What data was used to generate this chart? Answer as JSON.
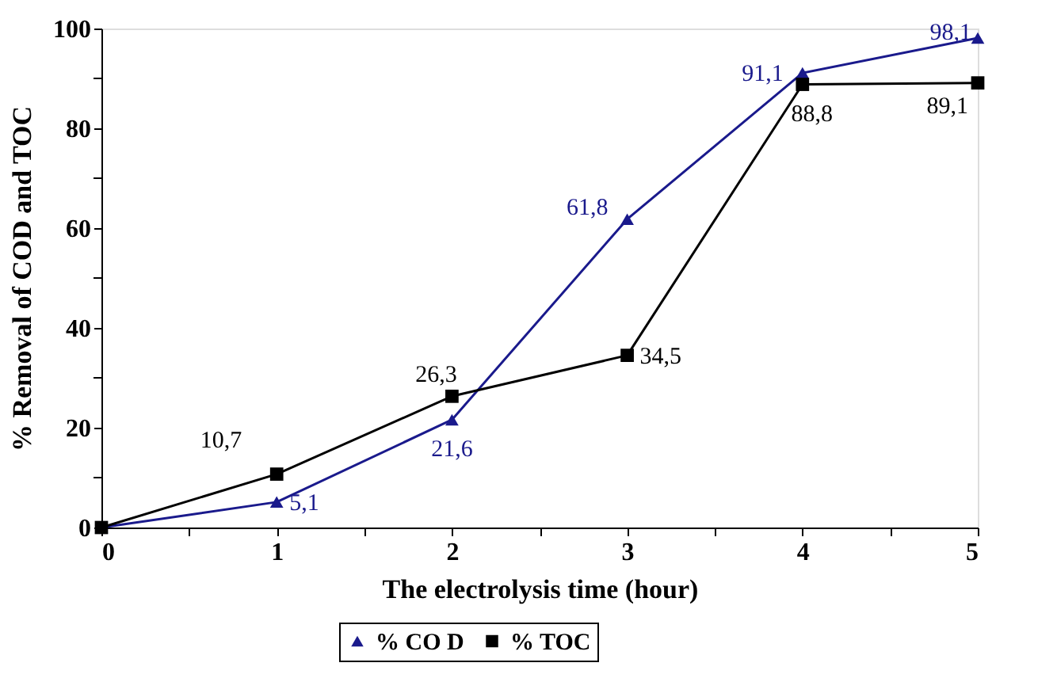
{
  "chart_data": {
    "type": "line",
    "xlabel": "The  electrolysis time (hour)",
    "ylabel": "% Removal of  COD and TOC",
    "x": [
      0,
      1,
      2,
      3,
      4,
      5
    ],
    "series": [
      {
        "name": "% CO D",
        "color": "#1a1a8c",
        "marker": "triangle",
        "values": [
          0,
          5.1,
          21.6,
          61.8,
          91.1,
          98.1
        ],
        "value_labels": [
          null,
          "5,1",
          "21,6",
          "61,8",
          "91,1",
          "98,1"
        ]
      },
      {
        "name": "% TOC",
        "color": "#000000",
        "marker": "square",
        "values": [
          0,
          10.7,
          26.3,
          34.5,
          88.8,
          89.1
        ],
        "value_labels": [
          null,
          "10,7",
          "26,3",
          "34,5",
          "88,8",
          "89,1"
        ]
      }
    ],
    "xlim": [
      0,
      5
    ],
    "xticks": [
      0,
      {
        "value": 0.5,
        "label": null
      },
      1,
      {
        "value": 1.5,
        "label": null
      },
      2,
      {
        "value": 2.5,
        "label": null
      },
      3,
      {
        "value": 3.5,
        "label": null
      },
      4,
      {
        "value": 4.5,
        "label": null
      },
      5
    ],
    "ylim": [
      0,
      100
    ],
    "yticks": [
      0,
      {
        "value": 10,
        "label": null
      },
      20,
      {
        "value": 30,
        "label": null
      },
      40,
      {
        "value": 50,
        "label": null
      },
      60,
      {
        "value": 70,
        "label": null
      },
      80,
      {
        "value": 90,
        "label": null
      },
      100
    ],
    "grid": false,
    "legend": "bottom",
    "line_style": "solid"
  }
}
